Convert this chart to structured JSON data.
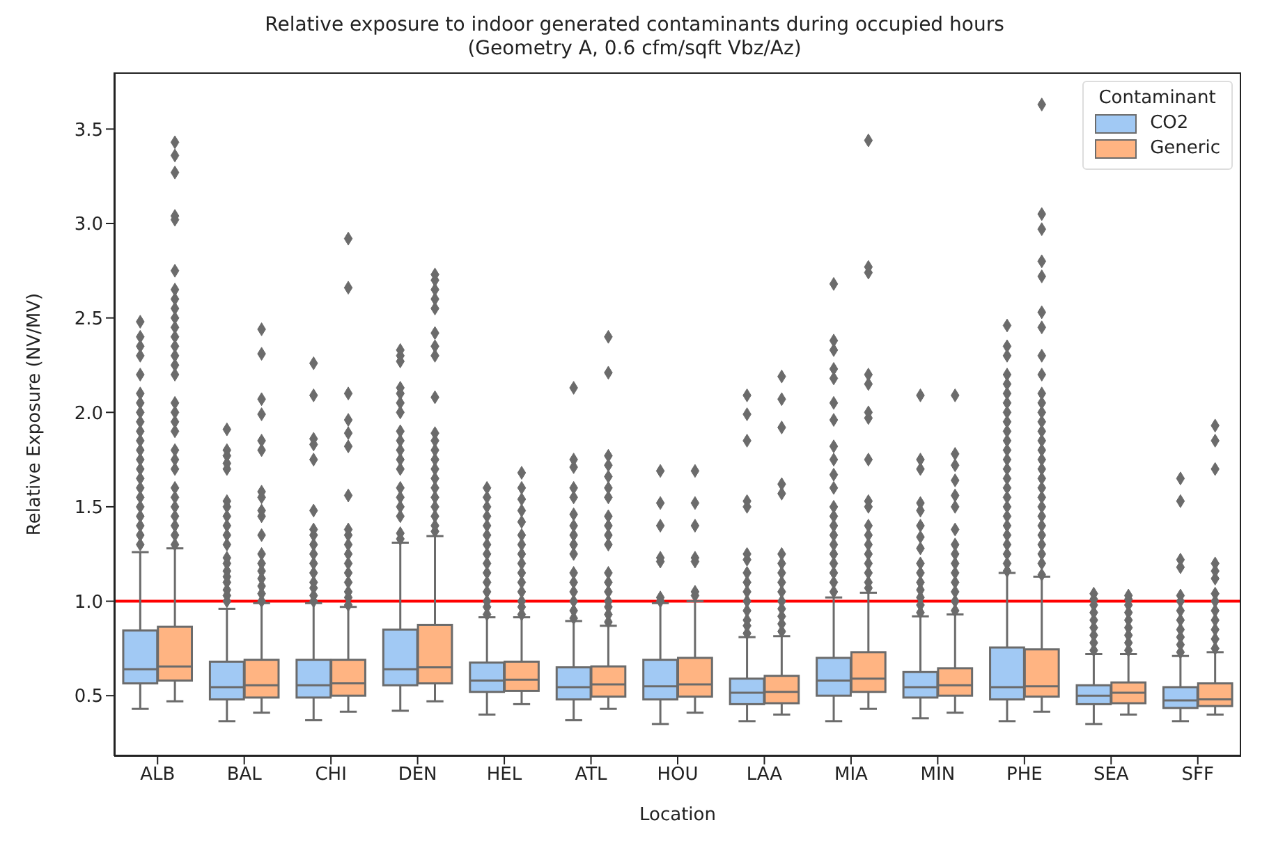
{
  "chart_data": {
    "type": "box",
    "title": "Relative exposure to indoor generated contaminants during occupied hours\n(Geometry A, 0.6 cfm/sqft Vbz/Az)",
    "xlabel": "Location",
    "ylabel": "Relative Exposure (NV/MV)",
    "legend_title": "Contaminant",
    "legend": "top right",
    "marker": "diamond",
    "categories": [
      "ALB",
      "BAL",
      "CHI",
      "DEN",
      "HEL",
      "ATL",
      "HOU",
      "LAA",
      "MIA",
      "MIN",
      "PHE",
      "SEA",
      "SFF"
    ],
    "ylim": [
      0.18,
      3.8
    ],
    "yticks": [
      0.5,
      {
        "value": 1,
        "label": "1.0"
      },
      1.5,
      {
        "value": 2,
        "label": "2.0"
      },
      2.5,
      {
        "value": 3,
        "label": "3.0"
      },
      3.5
    ],
    "ref_lines": [
      {
        "axis": "y",
        "value": 1.0,
        "color": "#ff0000"
      }
    ],
    "series": [
      {
        "name": "CO2",
        "color": "#a1c9f4",
        "boxes": [
          {
            "low": 0.43,
            "q1": 0.565,
            "median": 0.64,
            "q3": 0.845,
            "high": 1.26,
            "outliers": [
              1.3,
              1.35,
              1.4,
              1.45,
              1.5,
              1.55,
              1.6,
              1.65,
              1.7,
              1.75,
              1.8,
              1.85,
              1.9,
              1.95,
              2.0,
              2.05,
              2.1,
              2.2,
              2.3,
              2.35,
              2.4,
              2.48
            ]
          },
          {
            "low": 0.365,
            "q1": 0.48,
            "median": 0.545,
            "q3": 0.68,
            "high": 0.96,
            "outliers": [
              1.0,
              1.03,
              1.06,
              1.1,
              1.13,
              1.16,
              1.2,
              1.23,
              1.3,
              1.35,
              1.4,
              1.45,
              1.5,
              1.53,
              1.7,
              1.73,
              1.77,
              1.8,
              1.91
            ]
          },
          {
            "low": 0.37,
            "q1": 0.49,
            "median": 0.555,
            "q3": 0.69,
            "high": 0.99,
            "outliers": [
              1.0,
              1.03,
              1.07,
              1.1,
              1.15,
              1.2,
              1.25,
              1.3,
              1.35,
              1.38,
              1.48,
              1.75,
              1.83,
              1.86,
              2.09,
              2.26
            ]
          },
          {
            "low": 0.42,
            "q1": 0.555,
            "median": 0.64,
            "q3": 0.85,
            "high": 1.31,
            "outliers": [
              1.33,
              1.36,
              1.45,
              1.5,
              1.55,
              1.6,
              1.7,
              1.75,
              1.8,
              1.85,
              1.9,
              2.0,
              2.05,
              2.1,
              2.13,
              2.27,
              2.3,
              2.33
            ]
          },
          {
            "low": 0.4,
            "q1": 0.52,
            "median": 0.58,
            "q3": 0.675,
            "high": 0.915,
            "outliers": [
              0.93,
              0.97,
              1.0,
              1.05,
              1.1,
              1.15,
              1.2,
              1.25,
              1.3,
              1.35,
              1.4,
              1.45,
              1.5,
              1.55,
              1.6
            ]
          },
          {
            "low": 0.37,
            "q1": 0.48,
            "median": 0.545,
            "q3": 0.65,
            "high": 0.895,
            "outliers": [
              0.91,
              0.95,
              1.0,
              1.05,
              1.1,
              1.15,
              1.25,
              1.3,
              1.35,
              1.4,
              1.46,
              1.55,
              1.6,
              1.71,
              1.75,
              2.13
            ]
          },
          {
            "low": 0.35,
            "q1": 0.48,
            "median": 0.55,
            "q3": 0.69,
            "high": 0.99,
            "outliers": [
              1.0,
              1.02,
              1.21,
              1.23,
              1.4,
              1.52,
              1.69
            ]
          },
          {
            "low": 0.365,
            "q1": 0.455,
            "median": 0.515,
            "q3": 0.59,
            "high": 0.81,
            "outliers": [
              0.83,
              0.87,
              0.9,
              0.95,
              1.0,
              1.05,
              1.1,
              1.15,
              1.22,
              1.25,
              1.5,
              1.53,
              1.85,
              1.99,
              2.09
            ]
          },
          {
            "low": 0.365,
            "q1": 0.5,
            "median": 0.58,
            "q3": 0.7,
            "high": 1.02,
            "outliers": [
              1.05,
              1.1,
              1.15,
              1.2,
              1.25,
              1.3,
              1.35,
              1.4,
              1.45,
              1.5,
              1.6,
              1.67,
              1.75,
              1.82,
              1.96,
              2.05,
              2.18,
              2.23,
              2.33,
              2.38,
              2.68
            ]
          },
          {
            "low": 0.38,
            "q1": 0.49,
            "median": 0.545,
            "q3": 0.625,
            "high": 0.92,
            "outliers": [
              0.94,
              0.98,
              1.02,
              1.06,
              1.1,
              1.15,
              1.2,
              1.28,
              1.34,
              1.4,
              1.48,
              1.52,
              1.7,
              1.75,
              2.09
            ]
          },
          {
            "low": 0.365,
            "q1": 0.48,
            "median": 0.545,
            "q3": 0.755,
            "high": 1.15,
            "outliers": [
              1.16,
              1.2,
              1.25,
              1.3,
              1.35,
              1.4,
              1.45,
              1.5,
              1.55,
              1.6,
              1.65,
              1.7,
              1.75,
              1.8,
              1.85,
              1.9,
              1.95,
              2.0,
              2.05,
              2.1,
              2.15,
              2.2,
              2.3,
              2.35,
              2.46
            ]
          },
          {
            "low": 0.35,
            "q1": 0.455,
            "median": 0.5,
            "q3": 0.555,
            "high": 0.72,
            "outliers": [
              0.74,
              0.78,
              0.82,
              0.86,
              0.9,
              0.94,
              0.98,
              1.01,
              1.04
            ]
          },
          {
            "low": 0.365,
            "q1": 0.435,
            "median": 0.475,
            "q3": 0.545,
            "high": 0.71,
            "outliers": [
              0.73,
              0.77,
              0.81,
              0.85,
              0.9,
              0.95,
              1.0,
              1.03,
              1.18,
              1.22,
              1.53,
              1.65
            ]
          }
        ]
      },
      {
        "name": "Generic",
        "color": "#ffb482",
        "boxes": [
          {
            "low": 0.47,
            "q1": 0.58,
            "median": 0.655,
            "q3": 0.865,
            "high": 1.28,
            "outliers": [
              1.3,
              1.35,
              1.4,
              1.45,
              1.5,
              1.55,
              1.6,
              1.7,
              1.75,
              1.8,
              1.9,
              1.95,
              2.0,
              2.05,
              2.2,
              2.25,
              2.3,
              2.35,
              2.4,
              2.45,
              2.5,
              2.55,
              2.6,
              2.65,
              2.75,
              3.02,
              3.04,
              3.27,
              3.36,
              3.43
            ]
          },
          {
            "low": 0.41,
            "q1": 0.49,
            "median": 0.555,
            "q3": 0.69,
            "high": 0.99,
            "outliers": [
              1.0,
              1.04,
              1.08,
              1.12,
              1.16,
              1.2,
              1.25,
              1.35,
              1.45,
              1.48,
              1.55,
              1.58,
              1.8,
              1.85,
              1.99,
              2.07,
              2.31,
              2.44
            ]
          },
          {
            "low": 0.415,
            "q1": 0.5,
            "median": 0.565,
            "q3": 0.69,
            "high": 0.97,
            "outliers": [
              0.98,
              1.02,
              1.05,
              1.1,
              1.15,
              1.2,
              1.25,
              1.3,
              1.35,
              1.38,
              1.56,
              1.82,
              1.89,
              1.96,
              2.1,
              2.66,
              2.92
            ]
          },
          {
            "low": 0.47,
            "q1": 0.565,
            "median": 0.65,
            "q3": 0.875,
            "high": 1.345,
            "outliers": [
              1.37,
              1.4,
              1.45,
              1.5,
              1.55,
              1.6,
              1.65,
              1.7,
              1.75,
              1.8,
              1.85,
              1.89,
              2.08,
              2.3,
              2.35,
              2.42,
              2.55,
              2.6,
              2.65,
              2.7,
              2.73
            ]
          },
          {
            "low": 0.455,
            "q1": 0.525,
            "median": 0.585,
            "q3": 0.68,
            "high": 0.915,
            "outliers": [
              0.93,
              0.97,
              1.0,
              1.05,
              1.1,
              1.15,
              1.2,
              1.25,
              1.3,
              1.35,
              1.42,
              1.48,
              1.54,
              1.6,
              1.68
            ]
          },
          {
            "low": 0.43,
            "q1": 0.495,
            "median": 0.56,
            "q3": 0.655,
            "high": 0.87,
            "outliers": [
              0.89,
              0.93,
              0.97,
              1.0,
              1.05,
              1.1,
              1.15,
              1.3,
              1.35,
              1.4,
              1.45,
              1.55,
              1.6,
              1.66,
              1.72,
              1.77,
              2.21,
              2.4
            ]
          },
          {
            "low": 0.41,
            "q1": 0.495,
            "median": 0.56,
            "q3": 0.7,
            "high": 1.0,
            "outliers": [
              1.03,
              1.05,
              1.21,
              1.23,
              1.4,
              1.52,
              1.69
            ]
          },
          {
            "low": 0.4,
            "q1": 0.46,
            "median": 0.52,
            "q3": 0.605,
            "high": 0.815,
            "outliers": [
              0.84,
              0.88,
              0.92,
              0.96,
              1.0,
              1.05,
              1.1,
              1.15,
              1.2,
              1.25,
              1.57,
              1.62,
              1.92,
              2.07,
              2.19
            ]
          },
          {
            "low": 0.43,
            "q1": 0.52,
            "median": 0.59,
            "q3": 0.73,
            "high": 1.045,
            "outliers": [
              1.07,
              1.1,
              1.15,
              1.2,
              1.25,
              1.3,
              1.35,
              1.4,
              1.5,
              1.53,
              1.75,
              1.97,
              2.0,
              2.15,
              2.2,
              2.74,
              2.77,
              3.44
            ]
          },
          {
            "low": 0.41,
            "q1": 0.5,
            "median": 0.555,
            "q3": 0.645,
            "high": 0.93,
            "outliers": [
              0.95,
              1.0,
              1.05,
              1.1,
              1.15,
              1.2,
              1.25,
              1.3,
              1.38,
              1.5,
              1.56,
              1.64,
              1.72,
              1.78,
              2.09
            ]
          },
          {
            "low": 0.415,
            "q1": 0.495,
            "median": 0.55,
            "q3": 0.745,
            "high": 1.13,
            "outliers": [
              1.14,
              1.2,
              1.25,
              1.3,
              1.35,
              1.4,
              1.45,
              1.5,
              1.55,
              1.6,
              1.65,
              1.7,
              1.75,
              1.8,
              1.85,
              1.9,
              1.95,
              2.0,
              2.05,
              2.1,
              2.2,
              2.3,
              2.45,
              2.53,
              2.72,
              2.8,
              2.97,
              3.05,
              3.63
            ]
          },
          {
            "low": 0.4,
            "q1": 0.46,
            "median": 0.515,
            "q3": 0.57,
            "high": 0.72,
            "outliers": [
              0.74,
              0.78,
              0.82,
              0.86,
              0.9,
              0.94,
              0.98,
              1.01,
              1.03
            ]
          },
          {
            "low": 0.4,
            "q1": 0.445,
            "median": 0.48,
            "q3": 0.565,
            "high": 0.73,
            "outliers": [
              0.75,
              0.8,
              0.85,
              0.9,
              0.95,
              1.0,
              1.04,
              1.12,
              1.16,
              1.2,
              1.7,
              1.85,
              1.93
            ]
          }
        ]
      }
    ]
  }
}
